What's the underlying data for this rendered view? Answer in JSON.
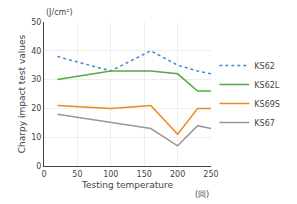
{
  "chart_data": {
    "type": "line",
    "xlabel": "Testing temperature",
    "ylabel": "Charpy impact test values",
    "annotations": [
      "(J/cm²)",
      "(回)"
    ],
    "xlim": [
      0,
      250
    ],
    "ylim": [
      0,
      50
    ],
    "xticks": [
      0,
      50,
      100,
      150,
      200,
      250
    ],
    "yticks": [
      0,
      10,
      20,
      30,
      40,
      50
    ],
    "grid": true,
    "legend": "right",
    "series": [
      {
        "name": "KS62",
        "color": "#4488DD",
        "line_style": "dotted",
        "x": [
          20,
          100,
          160,
          200,
          230,
          250
        ],
        "values": [
          38,
          33,
          40,
          35,
          33,
          32
        ]
      },
      {
        "name": "KS62L",
        "color": "#55AA44",
        "line_style": "solid",
        "x": [
          20,
          100,
          160,
          200,
          230,
          250
        ],
        "values": [
          30,
          33,
          33,
          32,
          26,
          26
        ]
      },
      {
        "name": "KS69S",
        "color": "#EE8822",
        "line_style": "solid",
        "x": [
          20,
          100,
          160,
          200,
          230,
          250
        ],
        "values": [
          21,
          20,
          21,
          11,
          20,
          20
        ]
      },
      {
        "name": "KS67",
        "color": "#999999",
        "line_style": "solid",
        "x": [
          20,
          100,
          160,
          200,
          230,
          250
        ],
        "values": [
          18,
          15,
          13,
          7,
          14,
          13
        ]
      }
    ]
  }
}
